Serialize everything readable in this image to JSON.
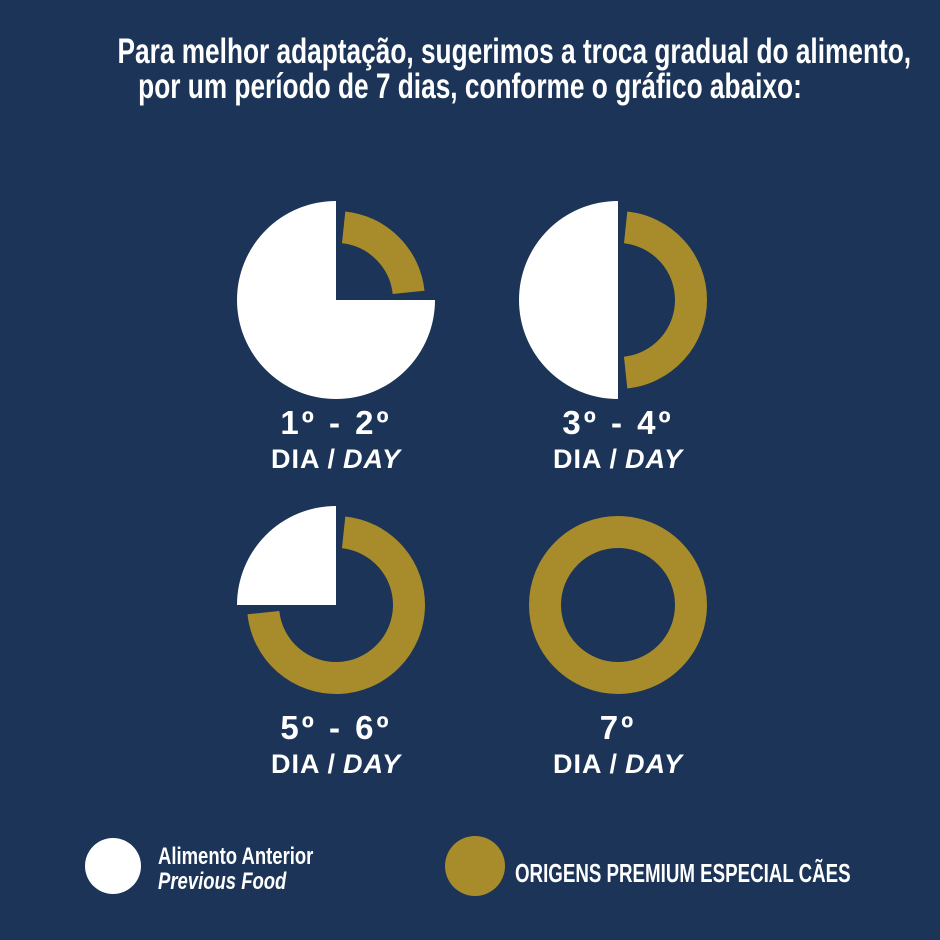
{
  "palette": {
    "background": "#1b3457",
    "white": "#ffffff",
    "gold": "#a88b2b",
    "text": "#ffffff"
  },
  "title": {
    "line1": "Para melhor adaptação, sugerimos a troca gradual do alimento,",
    "line2": "por um período de 7 dias, conforme o gráfico abaixo:"
  },
  "labels_common": {
    "dia": "DIA",
    "sep": "/",
    "day": "DAY"
  },
  "chart_data": {
    "type": "pie",
    "title": "Para melhor adaptação, sugerimos a troca gradual do alimento, por um período de 7 dias, conforme o gráfico abaixo:",
    "legend_position": "bottom",
    "steps": [
      {
        "label": "1º - 2º",
        "day_label": "DIA / DAY",
        "previous_food_pct": 75,
        "new_food_pct": 25
      },
      {
        "label": "3º - 4º",
        "day_label": "DIA / DAY",
        "previous_food_pct": 50,
        "new_food_pct": 50
      },
      {
        "label": "5º - 6º",
        "day_label": "DIA / DAY",
        "previous_food_pct": 25,
        "new_food_pct": 75
      },
      {
        "label": "7º",
        "day_label": "DIA / DAY",
        "previous_food_pct": 0,
        "new_food_pct": 100
      }
    ],
    "legend": [
      {
        "label": "Alimento Anterior / Previous Food",
        "color": "#ffffff"
      },
      {
        "label": "ORIGENS PREMIUM ESPECIAL CÃES",
        "color": "#a88b2b"
      }
    ]
  },
  "legend": {
    "previous": {
      "name_pt": "Alimento Anterior",
      "name_en": "Previous Food",
      "color": "#ffffff"
    },
    "new": {
      "name": "ORIGENS PREMIUM ESPECIAL CÃES",
      "color": "#a88b2b"
    }
  }
}
